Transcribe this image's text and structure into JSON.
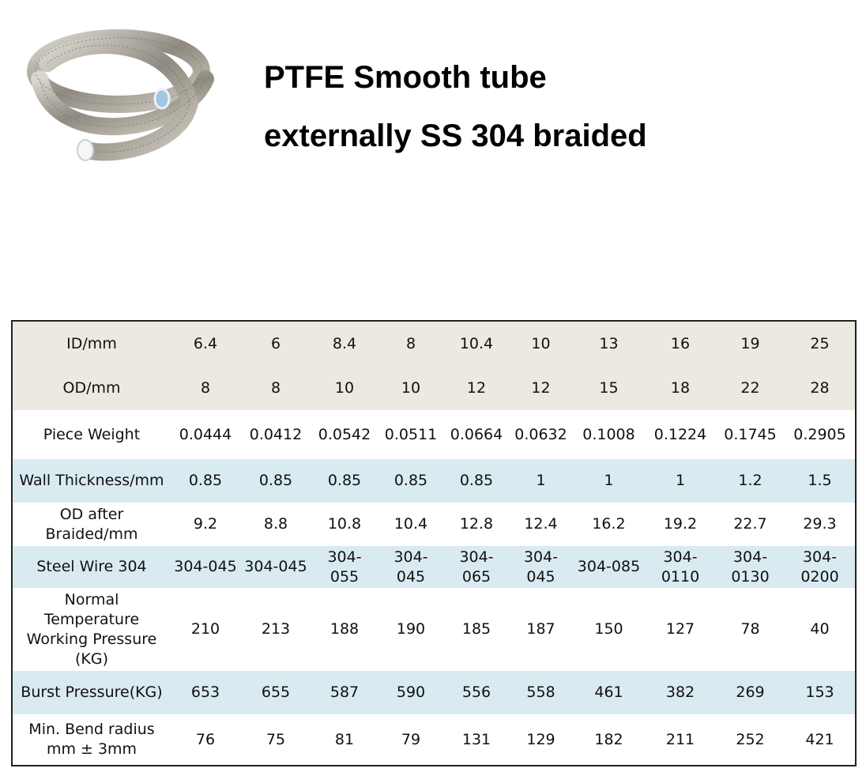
{
  "header": {
    "title": [
      "PTFE Smooth tube",
      "externally SS 304 braided"
    ]
  },
  "table": {
    "rows": [
      [
        "ID/mm",
        "6.4",
        "6",
        "8.4",
        "8",
        "10.4",
        "10",
        "13",
        "16",
        "19",
        "25"
      ],
      [
        "OD/mm",
        "8",
        "8",
        "10",
        "10",
        "12",
        "12",
        "15",
        "18",
        "22",
        "28"
      ],
      [
        "Piece Weight",
        "0.0444",
        "0.0412",
        "0.0542",
        "0.0511",
        "0.0664",
        "0.0632",
        "0.1008",
        "0.1224",
        "0.1745",
        "0.2905"
      ],
      [
        "Wall Thickness/mm",
        "0.85",
        "0.85",
        "0.85",
        "0.85",
        "0.85",
        "1",
        "1",
        "1",
        "1.2",
        "1.5"
      ],
      [
        "OD after Braided/mm",
        "9.2",
        "8.8",
        "10.8",
        "10.4",
        "12.8",
        "12.4",
        "16.2",
        "19.2",
        "22.7",
        "29.3"
      ],
      [
        "Steel Wire 304",
        "304-045",
        "304-045",
        "304-055",
        "304-045",
        "304-065",
        "304-045",
        "304-085",
        "304-0110",
        "304-0130",
        "304-0200"
      ],
      [
        "Normal Temperature Working Pressure (KG)",
        "210",
        "213",
        "188",
        "190",
        "185",
        "187",
        "150",
        "127",
        "78",
        "40"
      ],
      [
        "Burst Pressure(KG)",
        "653",
        "655",
        "587",
        "590",
        "556",
        "558",
        "461",
        "382",
        "269",
        "153"
      ],
      [
        "Min. Bend radius mm ± 3mm",
        "76",
        "75",
        "81",
        "79",
        "131",
        "129",
        "182",
        "211",
        "252",
        "421"
      ]
    ]
  }
}
